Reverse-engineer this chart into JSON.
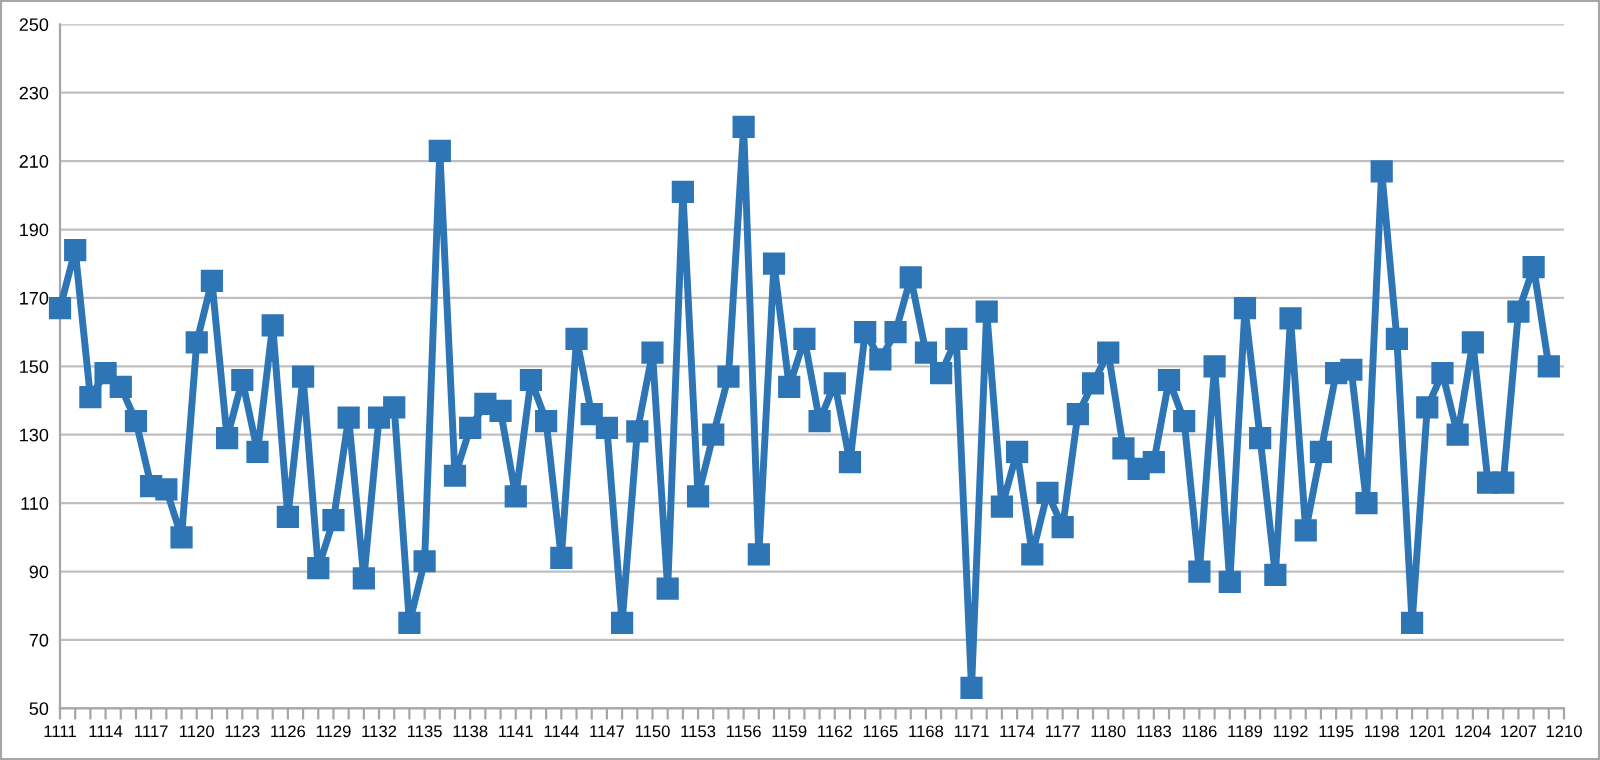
{
  "chart_data": {
    "type": "line",
    "categories": [
      "1111",
      null,
      null,
      "1114",
      null,
      null,
      "1117",
      null,
      null,
      "1120",
      null,
      null,
      "1123",
      null,
      null,
      "1126",
      null,
      null,
      "1129",
      null,
      null,
      "1132",
      null,
      null,
      "1135",
      null,
      null,
      "1138",
      null,
      null,
      "1141",
      null,
      null,
      "1144",
      null,
      null,
      "1147",
      null,
      null,
      "1150",
      null,
      null,
      "1153",
      null,
      null,
      "1156",
      null,
      null,
      "1159",
      null,
      null,
      "1162",
      null,
      null,
      "1165",
      null,
      null,
      "1168",
      null,
      null,
      "1171",
      null,
      null,
      "1174",
      null,
      null,
      "1177",
      null,
      null,
      "1180",
      null,
      null,
      "1183",
      null,
      null,
      "1186",
      null,
      null,
      "1189",
      null,
      null,
      "1192",
      null,
      null,
      "1195",
      null,
      null,
      "1198",
      null,
      null,
      "1201",
      null,
      null,
      "1204",
      null,
      null,
      "1207",
      null,
      null,
      "1210"
    ],
    "series": [
      {
        "color": "#2e75b6",
        "values": [
          167,
          184,
          141,
          148,
          144,
          134,
          115,
          114,
          100,
          157,
          175,
          129,
          146,
          125,
          162,
          106,
          147,
          91,
          105,
          135,
          88,
          135,
          138,
          75,
          93,
          213,
          118,
          132,
          139,
          137,
          112,
          146,
          134,
          94,
          158,
          136,
          132,
          75,
          131,
          154,
          85,
          201,
          112,
          130,
          147,
          220,
          95,
          180,
          144,
          158,
          134,
          145,
          122,
          160,
          152,
          160,
          176,
          154,
          148,
          158,
          56,
          166,
          109,
          125,
          95,
          113,
          103,
          136,
          145,
          154,
          126,
          120,
          122,
          146,
          134,
          90,
          150,
          87,
          167,
          129,
          89,
          164,
          102,
          125,
          148,
          149,
          110,
          207,
          158,
          75,
          138,
          148,
          130,
          157,
          116,
          116,
          166,
          179,
          150,
          null
        ]
      }
    ],
    "ylim": [
      50,
      250
    ],
    "yticks": [
      50,
      70,
      90,
      110,
      130,
      150,
      170,
      190,
      210,
      230,
      250
    ],
    "grid": "y",
    "legend": false,
    "marker": "square",
    "line_style": "solid"
  }
}
